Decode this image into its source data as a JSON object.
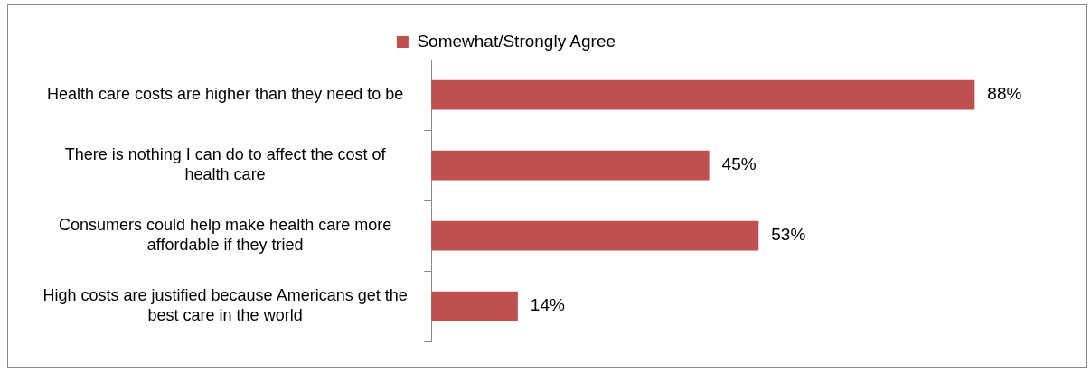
{
  "chart_data": {
    "type": "bar",
    "orientation": "horizontal",
    "categories": [
      "Health care costs are higher than they need to be",
      "There is nothing I can do to affect the cost of health care",
      "Consumers could help make health care more affordable if they tried",
      "High costs are justified because Americans get the best care in the world"
    ],
    "series": [
      {
        "name": "Somewhat/Strongly Agree",
        "color": "#c0504d",
        "values": [
          88,
          45,
          53,
          14
        ],
        "value_labels": [
          "88%",
          "45%",
          "53%",
          "14%"
        ]
      }
    ],
    "legend": "top"
  }
}
